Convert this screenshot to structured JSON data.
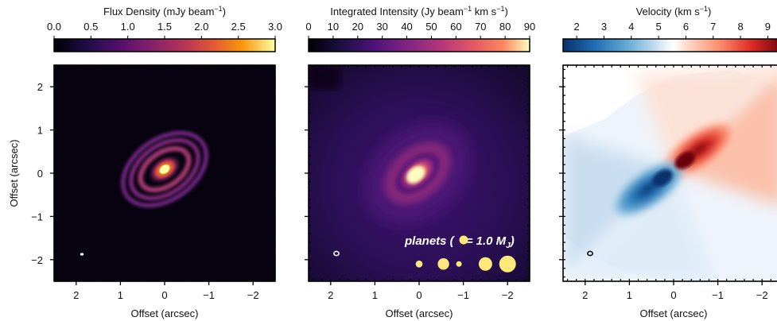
{
  "figure": {
    "ylabel": "Offset (arcsec)",
    "panels": [
      {
        "id": "continuum",
        "colorbar_title": "Flux Density (mJy beam",
        "colorbar_title_sup": "−1",
        "colorbar_title_end": ")",
        "colorbar_ticks": [
          "0.0",
          "0.5",
          "1.0",
          "1.5",
          "2.0",
          "2.5",
          "3.0"
        ],
        "colormap": "inferno",
        "xlabel": "Offset (arcsec)"
      },
      {
        "id": "moment0",
        "colorbar_title": "Integrated Intensity (Jy beam",
        "colorbar_title_sup": "−1",
        "colorbar_title_end": " km s",
        "colorbar_title_sup2": "−1",
        "colorbar_title_end2": ")",
        "colorbar_ticks": [
          "0",
          "10",
          "20",
          "30",
          "40",
          "50",
          "60",
          "70",
          "80",
          "90"
        ],
        "colormap": "magma",
        "xlabel": "Offset (arcsec)",
        "planet_legend": {
          "prefix": "planets (",
          "suffix": "= 1.0 M",
          "sub": "J",
          "close": ")"
        }
      },
      {
        "id": "moment1",
        "colorbar_title": "Velocity (km s",
        "colorbar_title_sup": "−1",
        "colorbar_title_end": ")",
        "colorbar_ticks": [
          "2",
          "3",
          "4",
          "5",
          "6",
          "7",
          "8",
          "9"
        ],
        "colormap": "RdBu_r",
        "xlabel": "Offset (arcsec)"
      }
    ],
    "x_ticks": [
      "2",
      "1",
      "0",
      "−1",
      "−2"
    ],
    "y_ticks": [
      "2",
      "1",
      "0",
      "−1",
      "−2"
    ],
    "colors": {
      "inferno_bright": "#fcffa4",
      "magma_bright": "#fcfdbf",
      "blue": "#08306b",
      "red": "#67000d",
      "planet": "#fde97a"
    }
  },
  "chart_data": [
    {
      "type": "heatmap",
      "title": "Flux Density (mJy beam−1)",
      "xlabel": "Offset (arcsec)",
      "ylabel": "Offset (arcsec)",
      "xlim": [
        2.5,
        -2.5
      ],
      "ylim": [
        -2.5,
        2.5
      ],
      "color_range": [
        0.0,
        3.0
      ],
      "colormap": "inferno"
    },
    {
      "type": "heatmap",
      "title": "Integrated Intensity (Jy beam−1 km s−1)",
      "xlabel": "Offset (arcsec)",
      "xlim": [
        2.5,
        -2.5
      ],
      "ylim": [
        -2.5,
        2.5
      ],
      "color_range": [
        0,
        90
      ],
      "colormap": "magma",
      "planets_offset_arcsec": [
        0.0,
        -0.55,
        -0.9,
        -1.5,
        -2.0
      ],
      "planets_y_arcsec": [
        -2.1,
        -2.1,
        -2.1,
        -2.1,
        -2.1
      ],
      "planet_masses_relative": [
        0.1,
        0.4,
        0.05,
        0.6,
        1.0
      ]
    },
    {
      "type": "heatmap",
      "title": "Velocity (km s−1)",
      "xlabel": "Offset (arcsec)",
      "xlim": [
        2.5,
        -2.5
      ],
      "ylim": [
        -2.5,
        2.5
      ],
      "color_range": [
        2,
        9
      ],
      "colormap": "RdBu_r"
    }
  ]
}
